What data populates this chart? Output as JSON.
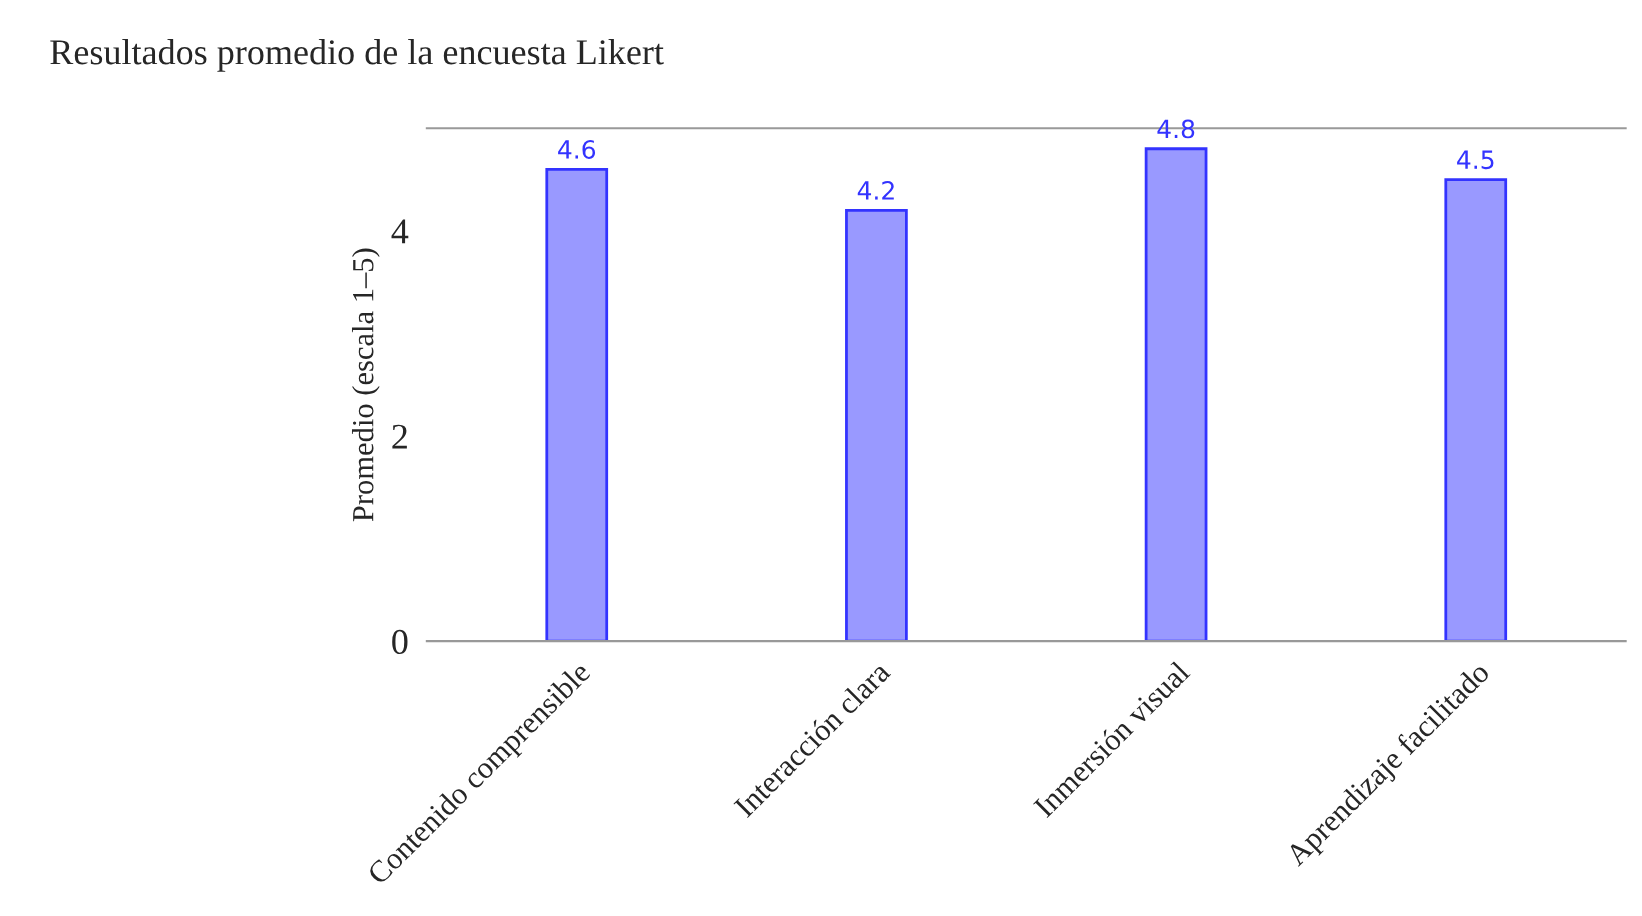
{
  "chart_data": {
    "type": "bar",
    "title": "Resultados promedio de la encuesta Likert",
    "ylabel": "Promedio (escala 1–5)",
    "categories": [
      "Contenido comprensible",
      "Interacción clara",
      "Inmersión visual",
      "Aprendizaje facilitado"
    ],
    "values": [
      4.6,
      4.2,
      4.8,
      4.5
    ],
    "color": "#9999ff",
    "data_labels": true,
    "ylim": [
      0,
      5
    ],
    "yticks": [
      0,
      2,
      4
    ],
    "grid": false
  }
}
